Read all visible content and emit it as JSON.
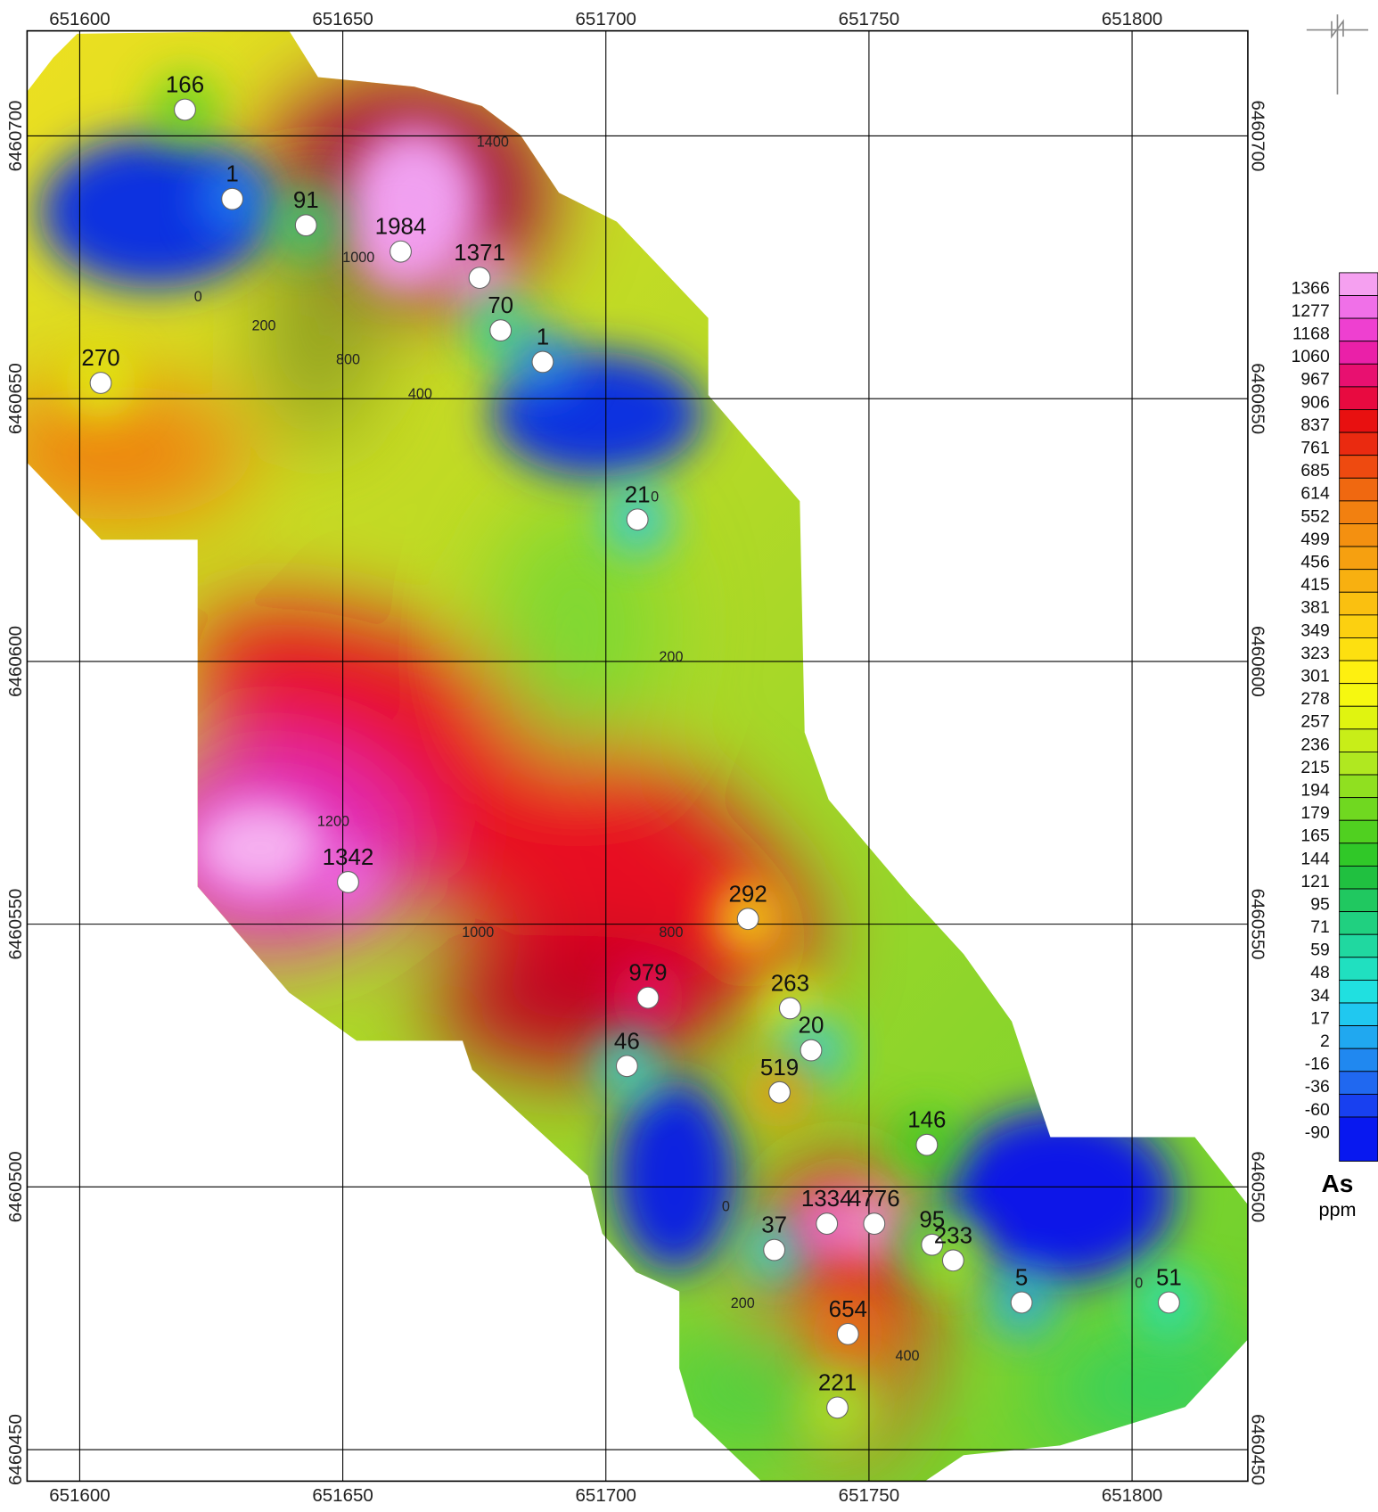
{
  "map": {
    "x_ticks": [
      651600,
      651650,
      651700,
      651750,
      651800
    ],
    "y_ticks": [
      6460450,
      6460500,
      6460550,
      6460600,
      6460650,
      6460700
    ],
    "xlim": [
      651590,
      651822
    ],
    "ylim": [
      6460444,
      6460720
    ],
    "samples": [
      {
        "x": 651620,
        "y": 6460705,
        "value": 166
      },
      {
        "x": 651629,
        "y": 6460688,
        "value": 1
      },
      {
        "x": 651643,
        "y": 6460683,
        "value": 91
      },
      {
        "x": 651661,
        "y": 6460678,
        "value": 1984
      },
      {
        "x": 651676,
        "y": 6460673,
        "value": 1371
      },
      {
        "x": 651680,
        "y": 6460663,
        "value": 70
      },
      {
        "x": 651688,
        "y": 6460657,
        "value": 1
      },
      {
        "x": 651604,
        "y": 6460653,
        "value": 270
      },
      {
        "x": 651706,
        "y": 6460627,
        "value": 21
      },
      {
        "x": 651651,
        "y": 6460558,
        "value": 1342
      },
      {
        "x": 651727,
        "y": 6460551,
        "value": 292
      },
      {
        "x": 651708,
        "y": 6460536,
        "value": 979
      },
      {
        "x": 651735,
        "y": 6460534,
        "value": 263
      },
      {
        "x": 651739,
        "y": 6460526,
        "value": 20
      },
      {
        "x": 651704,
        "y": 6460523,
        "value": 46
      },
      {
        "x": 651733,
        "y": 6460518,
        "value": 519
      },
      {
        "x": 651761,
        "y": 6460508,
        "value": 146
      },
      {
        "x": 651732,
        "y": 6460488,
        "value": 37
      },
      {
        "x": 651742,
        "y": 6460493,
        "value": 1334
      },
      {
        "x": 651751,
        "y": 6460493,
        "value": 4776
      },
      {
        "x": 651762,
        "y": 6460489,
        "value": 95
      },
      {
        "x": 651766,
        "y": 6460486,
        "value": 233
      },
      {
        "x": 651779,
        "y": 6460478,
        "value": 5
      },
      {
        "x": 651807,
        "y": 6460478,
        "value": 51
      },
      {
        "x": 651746,
        "y": 6460472,
        "value": 654
      },
      {
        "x": 651744,
        "y": 6460458,
        "value": 221
      }
    ],
    "contour_labels": [
      {
        "x": 651622.5,
        "y": 6460668.5,
        "value": 0
      },
      {
        "x": 651635,
        "y": 6460663,
        "value": 200
      },
      {
        "x": 651651,
        "y": 6460656.6,
        "value": 800
      },
      {
        "x": 651664.7,
        "y": 6460650,
        "value": 400
      },
      {
        "x": 651653,
        "y": 6460676,
        "value": 1000
      },
      {
        "x": 651678.5,
        "y": 6460698,
        "value": 1400
      },
      {
        "x": 651712.4,
        "y": 6460600,
        "value": 200
      },
      {
        "x": 651648.2,
        "y": 6460568.7,
        "value": 1200
      },
      {
        "x": 651675.7,
        "y": 6460547.6,
        "value": 1000
      },
      {
        "x": 651712.4,
        "y": 6460547.6,
        "value": 800
      },
      {
        "x": 651757.3,
        "y": 6460467,
        "value": 400
      },
      {
        "x": 651726,
        "y": 6460477,
        "value": 200
      },
      {
        "x": 651722.8,
        "y": 6460495.4,
        "value": 0
      },
      {
        "x": 651801.3,
        "y": 6460480.8,
        "value": 0
      },
      {
        "x": 651709.3,
        "y": 6460630.4,
        "value": 0
      }
    ],
    "legend": {
      "title": "As",
      "unit": "ppm",
      "levels": [
        1366,
        1277,
        1168,
        1060,
        967,
        906,
        837,
        761,
        685,
        614,
        552,
        499,
        456,
        415,
        381,
        349,
        323,
        301,
        278,
        257,
        236,
        215,
        194,
        179,
        165,
        144,
        121,
        95,
        71,
        59,
        48,
        34,
        17,
        2,
        -16,
        -36,
        -60,
        -90
      ],
      "colors": [
        "#f5a0f0",
        "#f070e8",
        "#ee40d0",
        "#ea20a8",
        "#e81070",
        "#e80a40",
        "#e81010",
        "#ea2a10",
        "#ee4a10",
        "#f06810",
        "#f28010",
        "#f49010",
        "#f6a010",
        "#f8b010",
        "#fac010",
        "#fcd010",
        "#fde010",
        "#fef010",
        "#f6f810",
        "#e0f410",
        "#c8ee18",
        "#b0e820",
        "#90e020",
        "#70d820",
        "#50d020",
        "#30c828",
        "#20c040",
        "#20c860",
        "#20d080",
        "#20d8a0",
        "#20e0c0",
        "#20e0e0",
        "#20c8f0",
        "#20a8f0",
        "#2088f0",
        "#2068f0",
        "#1840f0",
        "#0818f0"
      ]
    }
  }
}
